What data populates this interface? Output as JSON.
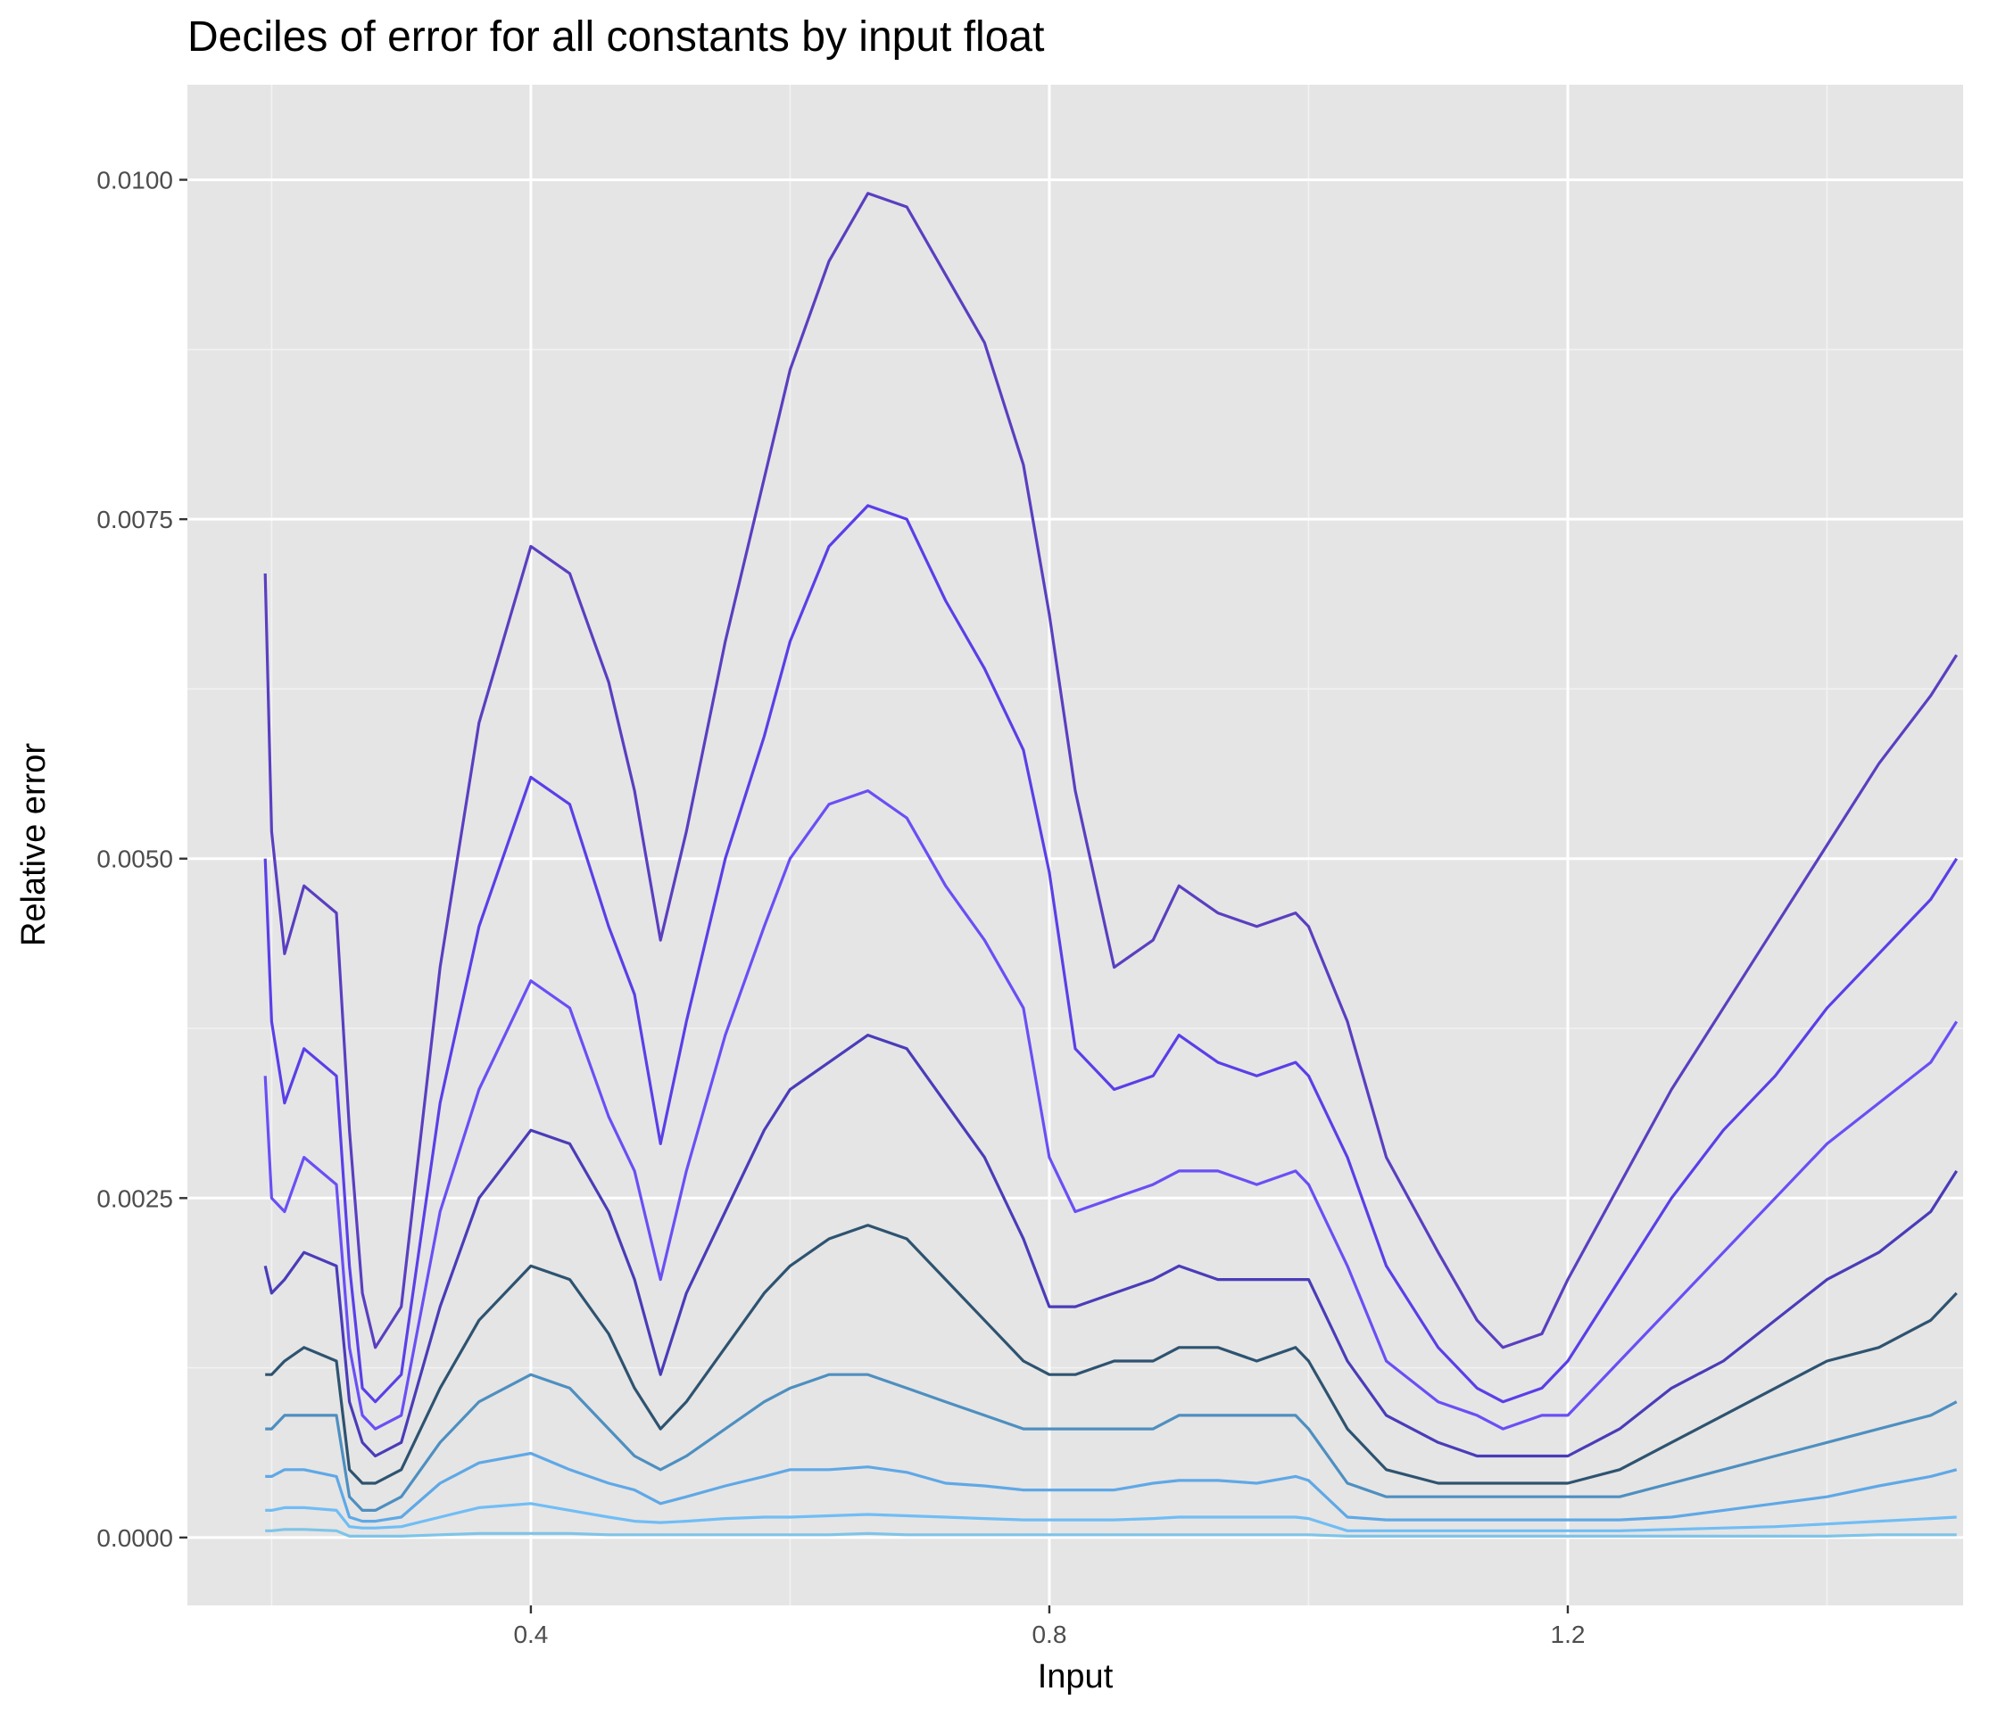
{
  "chart_data": {
    "type": "line",
    "title": "Deciles of error for all constants by input float",
    "xlabel": "Input",
    "ylabel": "Relative error",
    "xlim": [
      0.135,
      1.505
    ],
    "ylim": [
      -0.0005,
      0.0107
    ],
    "x_ticks": [
      0.4,
      0.8,
      1.2
    ],
    "x_tick_labels": [
      "0.4",
      "0.8",
      "1.2"
    ],
    "y_ticks": [
      0.0,
      0.0025,
      0.005,
      0.0075,
      0.01
    ],
    "y_tick_labels": [
      "0.0000",
      "0.0025",
      "0.0050",
      "0.0075",
      "0.0100"
    ],
    "grid": true,
    "legend": "none",
    "x": [
      0.195,
      0.2,
      0.21,
      0.225,
      0.25,
      0.26,
      0.27,
      0.28,
      0.3,
      0.33,
      0.36,
      0.4,
      0.43,
      0.46,
      0.48,
      0.5,
      0.52,
      0.55,
      0.58,
      0.6,
      0.63,
      0.66,
      0.69,
      0.72,
      0.75,
      0.78,
      0.8,
      0.82,
      0.85,
      0.88,
      0.9,
      0.93,
      0.96,
      0.99,
      1.0,
      1.03,
      1.06,
      1.1,
      1.13,
      1.15,
      1.18,
      1.2,
      1.24,
      1.28,
      1.32,
      1.36,
      1.4,
      1.44,
      1.48,
      1.5
    ],
    "series": [
      {
        "color": "#5a3fc0",
        "values": [
          0.0071,
          0.0052,
          0.0043,
          0.0048,
          0.0046,
          0.003,
          0.0018,
          0.0014,
          0.0017,
          0.0042,
          0.006,
          0.0073,
          0.0071,
          0.0063,
          0.0055,
          0.0044,
          0.0052,
          0.0066,
          0.0078,
          0.0086,
          0.0094,
          0.0099,
          0.0098,
          0.0093,
          0.0088,
          0.0079,
          0.0068,
          0.0055,
          0.0042,
          0.0044,
          0.0048,
          0.0046,
          0.0045,
          0.0046,
          0.0045,
          0.0038,
          0.0028,
          0.0021,
          0.0016,
          0.0014,
          0.0015,
          0.0019,
          0.0026,
          0.0033,
          0.0039,
          0.0045,
          0.0051,
          0.0057,
          0.0062,
          0.0065
        ]
      },
      {
        "color": "#5a3fe8",
        "values": [
          0.005,
          0.0038,
          0.0032,
          0.0036,
          0.0034,
          0.002,
          0.0011,
          0.001,
          0.0012,
          0.0032,
          0.0045,
          0.0056,
          0.0054,
          0.0045,
          0.004,
          0.0029,
          0.0038,
          0.005,
          0.0059,
          0.0066,
          0.0073,
          0.0076,
          0.0075,
          0.0069,
          0.0064,
          0.0058,
          0.0049,
          0.0036,
          0.0033,
          0.0034,
          0.0037,
          0.0035,
          0.0034,
          0.0035,
          0.0034,
          0.0028,
          0.002,
          0.0014,
          0.0011,
          0.001,
          0.0011,
          0.0013,
          0.0019,
          0.0025,
          0.003,
          0.0034,
          0.0039,
          0.0043,
          0.0047,
          0.005
        ]
      },
      {
        "color": "#6a4ff5",
        "values": [
          0.0034,
          0.0025,
          0.0024,
          0.0028,
          0.0026,
          0.0014,
          0.0009,
          0.0008,
          0.0009,
          0.0024,
          0.0033,
          0.0041,
          0.0039,
          0.0031,
          0.0027,
          0.0019,
          0.0027,
          0.0037,
          0.0045,
          0.005,
          0.0054,
          0.0055,
          0.0053,
          0.0048,
          0.0044,
          0.0039,
          0.0028,
          0.0024,
          0.0025,
          0.0026,
          0.0027,
          0.0027,
          0.0026,
          0.0027,
          0.0026,
          0.002,
          0.0013,
          0.001,
          0.0009,
          0.0008,
          0.0009,
          0.0009,
          0.0013,
          0.0017,
          0.0021,
          0.0025,
          0.0029,
          0.0032,
          0.0035,
          0.0038
        ]
      },
      {
        "color": "#4a3cb8",
        "values": [
          0.002,
          0.0018,
          0.0019,
          0.0021,
          0.002,
          0.001,
          0.0007,
          0.0006,
          0.0007,
          0.0017,
          0.0025,
          0.003,
          0.0029,
          0.0024,
          0.0019,
          0.0012,
          0.0018,
          0.0024,
          0.003,
          0.0033,
          0.0035,
          0.0037,
          0.0036,
          0.0032,
          0.0028,
          0.0022,
          0.0017,
          0.0017,
          0.0018,
          0.0019,
          0.002,
          0.0019,
          0.0019,
          0.0019,
          0.0019,
          0.0013,
          0.0009,
          0.0007,
          0.0006,
          0.0006,
          0.0006,
          0.0006,
          0.0008,
          0.0011,
          0.0013,
          0.0016,
          0.0019,
          0.0021,
          0.0024,
          0.0027
        ]
      },
      {
        "color": "#2e5370",
        "values": [
          0.0012,
          0.0012,
          0.0013,
          0.0014,
          0.0013,
          0.0005,
          0.0004,
          0.0004,
          0.0005,
          0.0011,
          0.0016,
          0.002,
          0.0019,
          0.0015,
          0.0011,
          0.0008,
          0.001,
          0.0014,
          0.0018,
          0.002,
          0.0022,
          0.0023,
          0.0022,
          0.0019,
          0.0016,
          0.0013,
          0.0012,
          0.0012,
          0.0013,
          0.0013,
          0.0014,
          0.0014,
          0.0013,
          0.0014,
          0.0013,
          0.0008,
          0.0005,
          0.0004,
          0.0004,
          0.0004,
          0.0004,
          0.0004,
          0.0005,
          0.0007,
          0.0009,
          0.0011,
          0.0013,
          0.0014,
          0.0016,
          0.0018
        ]
      },
      {
        "color": "#4e8fc0",
        "values": [
          0.0008,
          0.0008,
          0.0009,
          0.0009,
          0.0009,
          0.0003,
          0.0002,
          0.0002,
          0.0003,
          0.0007,
          0.001,
          0.0012,
          0.0011,
          0.0008,
          0.0006,
          0.0005,
          0.0006,
          0.0008,
          0.001,
          0.0011,
          0.0012,
          0.0012,
          0.0011,
          0.001,
          0.0009,
          0.0008,
          0.0008,
          0.0008,
          0.0008,
          0.0008,
          0.0009,
          0.0009,
          0.0009,
          0.0009,
          0.0008,
          0.0004,
          0.0003,
          0.0003,
          0.0003,
          0.0003,
          0.0003,
          0.0003,
          0.0003,
          0.0004,
          0.0005,
          0.0006,
          0.0007,
          0.0008,
          0.0009,
          0.001
        ]
      },
      {
        "color": "#5fa8e6",
        "values": [
          0.00045,
          0.00045,
          0.0005,
          0.0005,
          0.00045,
          0.00015,
          0.00012,
          0.00012,
          0.00015,
          0.0004,
          0.00055,
          0.00062,
          0.0005,
          0.0004,
          0.00035,
          0.00025,
          0.0003,
          0.00038,
          0.00045,
          0.0005,
          0.0005,
          0.00052,
          0.00048,
          0.0004,
          0.00038,
          0.00035,
          0.00035,
          0.00035,
          0.00035,
          0.0004,
          0.00042,
          0.00042,
          0.0004,
          0.00045,
          0.00042,
          0.00015,
          0.00013,
          0.00013,
          0.00013,
          0.00013,
          0.00013,
          0.00013,
          0.00013,
          0.00015,
          0.0002,
          0.00025,
          0.0003,
          0.00038,
          0.00045,
          0.0005
        ]
      },
      {
        "color": "#70bdf5",
        "values": [
          0.0002,
          0.0002,
          0.00022,
          0.00022,
          0.0002,
          8e-05,
          7e-05,
          7e-05,
          8e-05,
          0.00015,
          0.00022,
          0.00025,
          0.0002,
          0.00015,
          0.00012,
          0.00011,
          0.00012,
          0.00014,
          0.00015,
          0.00015,
          0.00016,
          0.00017,
          0.00016,
          0.00015,
          0.00014,
          0.00013,
          0.00013,
          0.00013,
          0.00013,
          0.00014,
          0.00015,
          0.00015,
          0.00015,
          0.00015,
          0.00014,
          5e-05,
          5e-05,
          5e-05,
          5e-05,
          5e-05,
          5e-05,
          5e-05,
          5e-05,
          6e-05,
          7e-05,
          8e-05,
          0.0001,
          0.00012,
          0.00014,
          0.00015
        ]
      },
      {
        "color": "#7ec4e8",
        "values": [
          5e-05,
          5e-05,
          6e-05,
          6e-05,
          5e-05,
          1e-05,
          1e-05,
          1e-05,
          1e-05,
          2e-05,
          3e-05,
          3e-05,
          3e-05,
          2e-05,
          2e-05,
          2e-05,
          2e-05,
          2e-05,
          2e-05,
          2e-05,
          2e-05,
          3e-05,
          2e-05,
          2e-05,
          2e-05,
          2e-05,
          2e-05,
          2e-05,
          2e-05,
          2e-05,
          2e-05,
          2e-05,
          2e-05,
          2e-05,
          2e-05,
          1e-05,
          1e-05,
          1e-05,
          1e-05,
          1e-05,
          1e-05,
          1e-05,
          1e-05,
          1e-05,
          1e-05,
          1e-05,
          1e-05,
          2e-05,
          2e-05,
          2e-05
        ]
      }
    ]
  }
}
